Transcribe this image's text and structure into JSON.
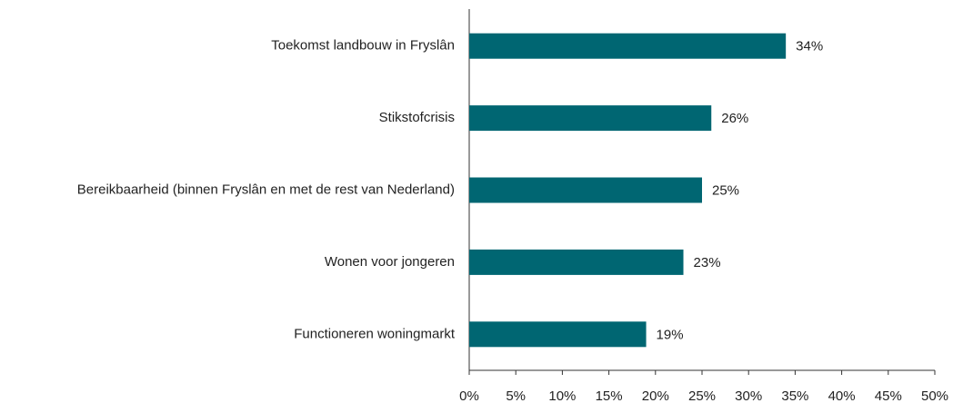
{
  "chart_data": {
    "type": "barh",
    "categories": [
      "Toekomst landbouw in Fryslân",
      "Stikstofcrisis",
      "Bereikbaarheid (binnen Fryslân en met de rest van Nederland)",
      "Wonen voor jongeren",
      "Functioneren woningmarkt"
    ],
    "values": [
      34,
      26,
      25,
      23,
      19
    ],
    "value_labels": [
      "34%",
      "26%",
      "25%",
      "23%",
      "19%"
    ],
    "color": "#006672",
    "xlim": [
      0,
      50
    ],
    "xticks": [
      {
        "value": 0,
        "label": "0%"
      },
      {
        "value": 5,
        "label": "5%"
      },
      {
        "value": 10,
        "label": "10%"
      },
      {
        "value": 15,
        "label": "15%"
      },
      {
        "value": 20,
        "label": "20%"
      },
      {
        "value": 25,
        "label": "25%"
      },
      {
        "value": 30,
        "label": "30%"
      },
      {
        "value": 35,
        "label": "35%"
      },
      {
        "value": 40,
        "label": "40%"
      },
      {
        "value": 45,
        "label": "45%"
      },
      {
        "value": 50,
        "label": "50%"
      }
    ],
    "grid": false
  }
}
